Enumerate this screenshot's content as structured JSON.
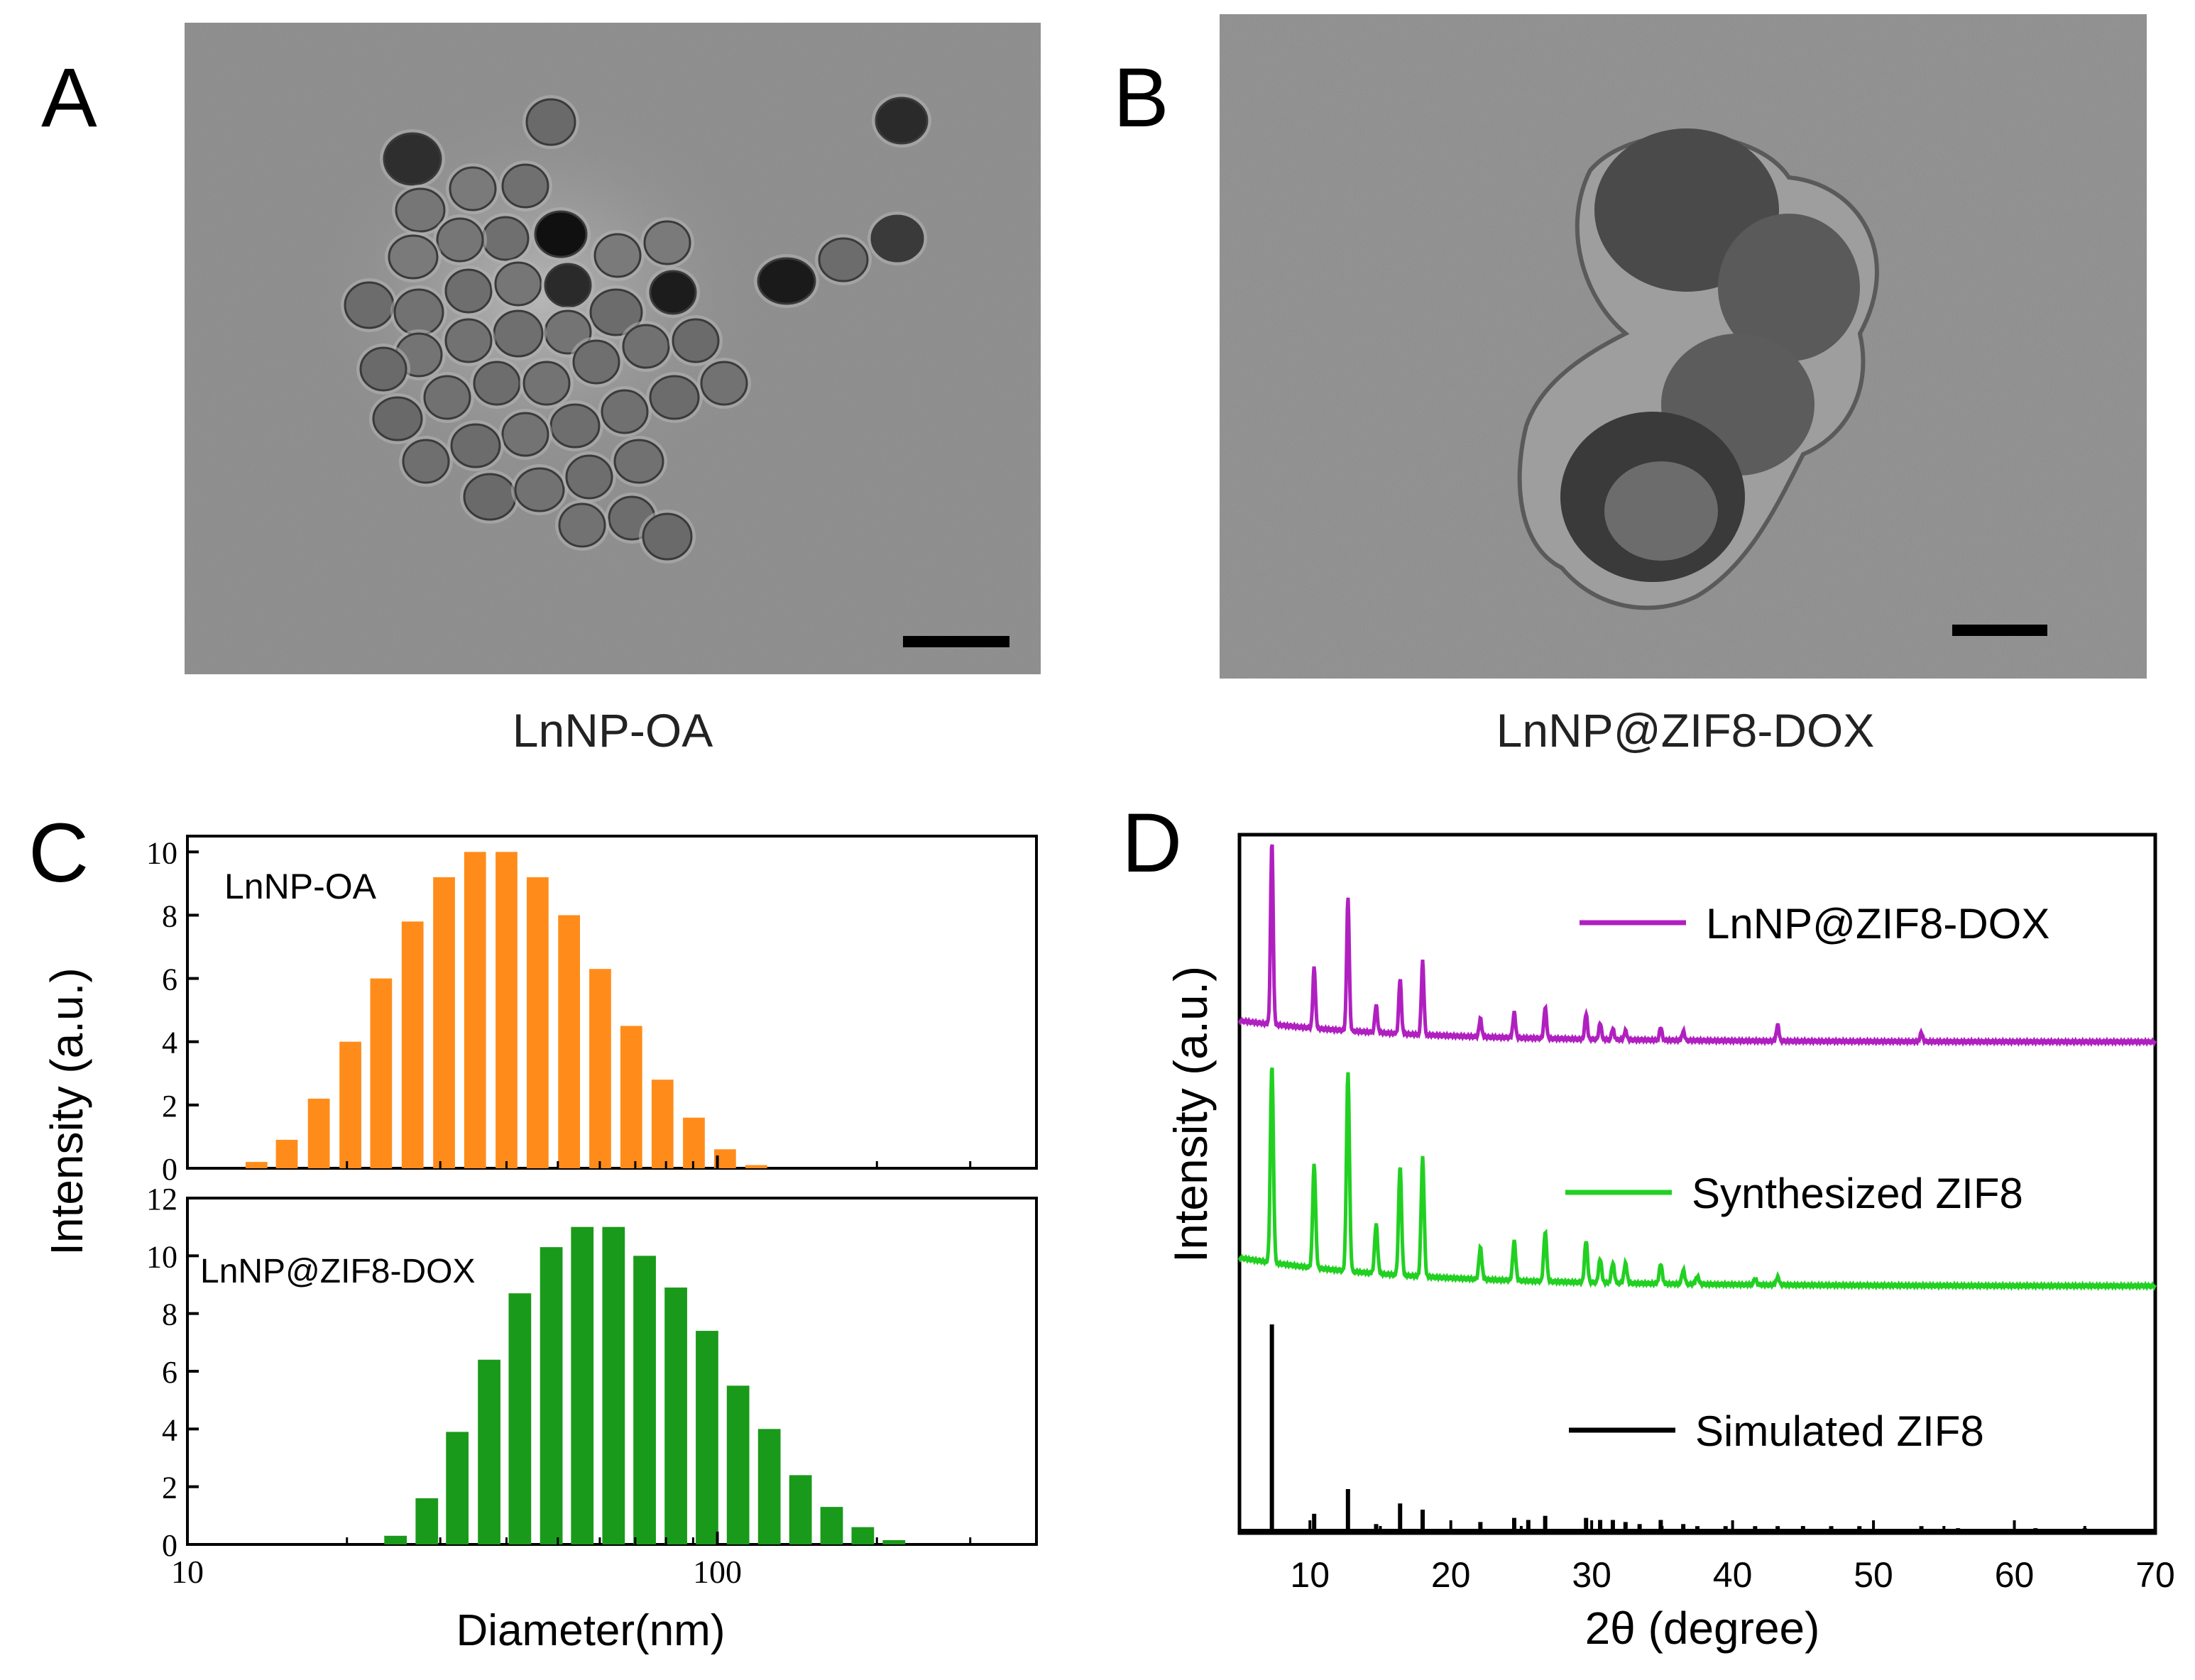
{
  "panels": {
    "a": {
      "letter": "A",
      "caption": "LnNP-OA"
    },
    "b": {
      "letter": "B",
      "caption": "LnNP@ZIF8-DOX"
    },
    "c": {
      "letter": "C"
    },
    "d": {
      "letter": "D"
    }
  },
  "colors": {
    "orange": "#FF8C1A",
    "green": "#1A9A1A",
    "purple": "#B020C0",
    "light_green": "#22D022",
    "black": "#000000"
  },
  "chart_data": [
    {
      "type": "bar",
      "panel": "C-top",
      "annotation": "LnNP-OA",
      "ylabel": "Intensity (a.u.)",
      "xscale": "log",
      "xlim": [
        10,
        400
      ],
      "ylim": [
        0,
        10.5
      ],
      "yticks": [
        0,
        2,
        4,
        6,
        8,
        10
      ],
      "x": [
        13.5,
        15.4,
        17.7,
        20.3,
        23.2,
        26.6,
        30.5,
        34.9,
        40,
        45.8,
        52.5,
        60.1,
        68.8,
        78.8,
        90.3,
        103.4,
        118.4,
        135.6
      ],
      "values": [
        0.2,
        0.9,
        2.2,
        4.0,
        6.0,
        7.8,
        9.2,
        10.0,
        10.0,
        9.2,
        8.0,
        6.3,
        4.5,
        2.8,
        1.6,
        0.6,
        0.1,
        0.0
      ],
      "color": "#FF8C1A"
    },
    {
      "type": "bar",
      "panel": "C-bottom",
      "annotation": "LnNP@ZIF8-DOX",
      "xlabel": "Diameter(nm)",
      "ylabel": "Intensity (a.u.)",
      "xscale": "log",
      "xlim": [
        10,
        400
      ],
      "ylim": [
        0,
        12
      ],
      "yticks": [
        0,
        2,
        4,
        6,
        8,
        10,
        12
      ],
      "xticks": [
        10,
        100
      ],
      "x": [
        24.7,
        28.3,
        32.3,
        37.1,
        42.4,
        48.6,
        55.6,
        63.7,
        72.9,
        83.5,
        95.6,
        109.4,
        125.3,
        143.5,
        164.3,
        188.1,
        215.4,
        246.6,
        282.4
      ],
      "values": [
        0.3,
        1.6,
        3.9,
        6.4,
        8.7,
        10.3,
        11.0,
        11.0,
        10.0,
        8.9,
        7.4,
        5.5,
        4.0,
        2.4,
        1.3,
        0.6,
        0.15,
        0.0,
        0.0
      ],
      "color": "#1A9A1A"
    },
    {
      "type": "line",
      "panel": "D",
      "xlabel": "2θ (degree)",
      "ylabel": "Intensity",
      "ylabel_unit": " (a.u.)",
      "xlim": [
        5,
        70
      ],
      "xticks": [
        10,
        20,
        30,
        40,
        50,
        60,
        70
      ],
      "series": [
        {
          "name": "LnNP@ZIF8-DOX",
          "color": "#B020C0",
          "peaks": [
            [
              7.3,
              1.0
            ],
            [
              10.3,
              0.33
            ],
            [
              12.7,
              0.72
            ],
            [
              14.7,
              0.15
            ],
            [
              16.4,
              0.3
            ],
            [
              18.0,
              0.4
            ],
            [
              22.1,
              0.1
            ],
            [
              24.5,
              0.14
            ],
            [
              26.7,
              0.17
            ],
            [
              29.6,
              0.14
            ],
            [
              30.6,
              0.09
            ],
            [
              31.5,
              0.06
            ],
            [
              32.4,
              0.05
            ],
            [
              34.9,
              0.07
            ],
            [
              36.5,
              0.05
            ],
            [
              43.2,
              0.09
            ],
            [
              53.4,
              0.05
            ]
          ]
        },
        {
          "name": "Synthesized ZIF8",
          "color": "#22D022",
          "peaks": [
            [
              7.3,
              1.0
            ],
            [
              10.3,
              0.52
            ],
            [
              12.7,
              1.0
            ],
            [
              14.7,
              0.25
            ],
            [
              16.4,
              0.55
            ],
            [
              18.0,
              0.6
            ],
            [
              22.1,
              0.16
            ],
            [
              24.5,
              0.2
            ],
            [
              26.7,
              0.25
            ],
            [
              29.6,
              0.21
            ],
            [
              30.6,
              0.12
            ],
            [
              31.5,
              0.1
            ],
            [
              32.4,
              0.1
            ],
            [
              34.9,
              0.1
            ],
            [
              36.5,
              0.07
            ],
            [
              37.5,
              0.04
            ],
            [
              41.6,
              0.03
            ],
            [
              43.2,
              0.04
            ]
          ]
        },
        {
          "name": "Simulated ZIF8",
          "color": "#000000",
          "peaks": [
            [
              7.3,
              1.0
            ],
            [
              10.3,
              0.08
            ],
            [
              12.7,
              0.2
            ],
            [
              14.7,
              0.03
            ],
            [
              16.4,
              0.13
            ],
            [
              18.0,
              0.1
            ],
            [
              22.1,
              0.04
            ],
            [
              24.5,
              0.06
            ],
            [
              25.5,
              0.05
            ],
            [
              26.7,
              0.07
            ],
            [
              29.6,
              0.06
            ],
            [
              30.6,
              0.05
            ],
            [
              31.5,
              0.05
            ],
            [
              32.4,
              0.04
            ],
            [
              33.4,
              0.03
            ],
            [
              34.9,
              0.05
            ],
            [
              36.5,
              0.03
            ],
            [
              37.5,
              0.02
            ],
            [
              39.5,
              0.02
            ],
            [
              41.6,
              0.02
            ],
            [
              43.2,
              0.02
            ],
            [
              45.0,
              0.02
            ],
            [
              47.0,
              0.02
            ],
            [
              49.0,
              0.02
            ],
            [
              53.4,
              0.02
            ],
            [
              56.0,
              0.01
            ],
            [
              61.5,
              0.01
            ],
            [
              65.0,
              0.01
            ]
          ]
        }
      ]
    }
  ]
}
